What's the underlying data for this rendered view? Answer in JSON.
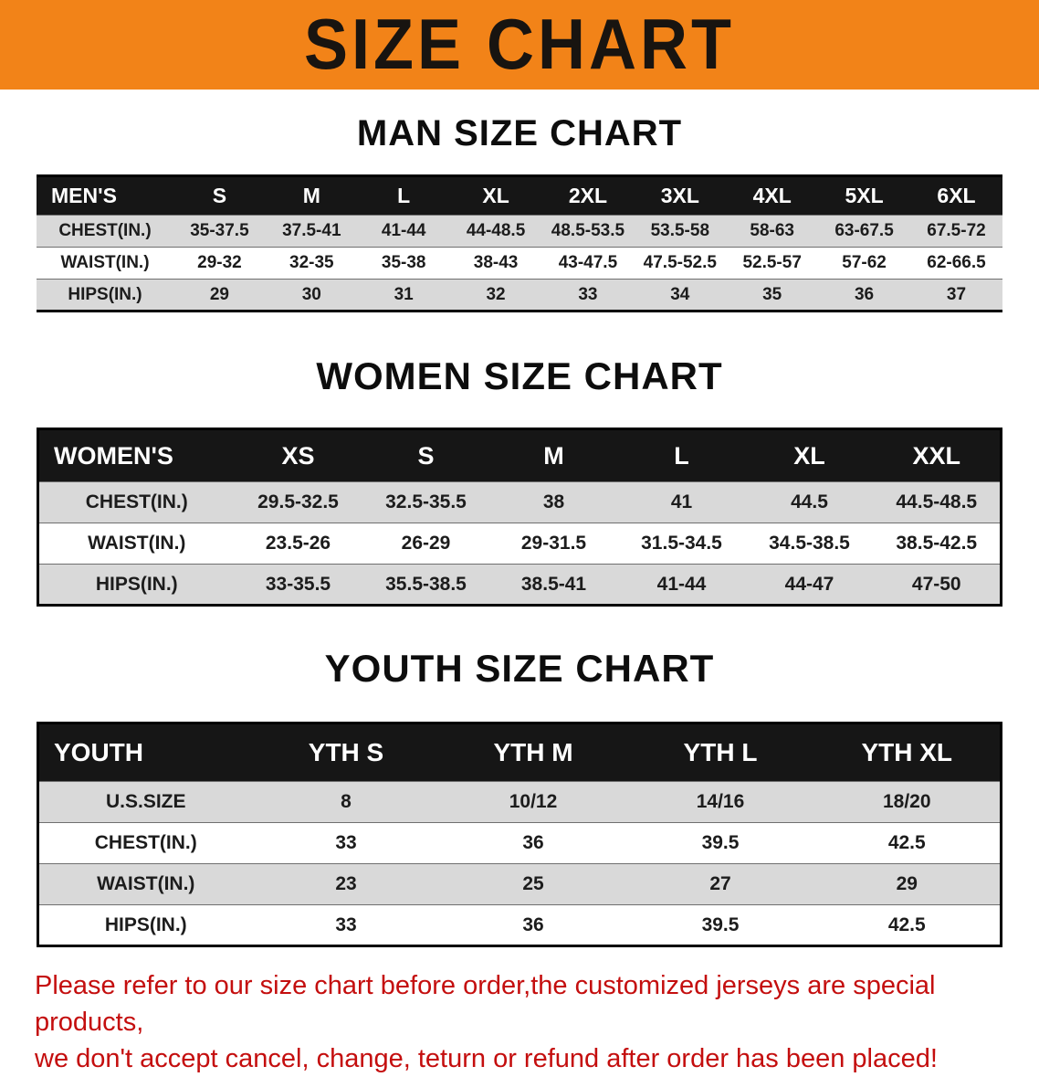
{
  "banner": {
    "title": "SIZE CHART"
  },
  "colors": {
    "banner_bg": "#f28318",
    "table_header_bg": "#161616",
    "row_alt_bg": "#d9d9d9",
    "footer_text": "#c40e0e"
  },
  "sections": [
    {
      "id": "men",
      "heading": "MAN SIZE CHART",
      "header": [
        "MEN'S",
        "S",
        "M",
        "L",
        "XL",
        "2XL",
        "3XL",
        "4XL",
        "5XL",
        "6XL"
      ],
      "rows": [
        [
          "CHEST(IN.)",
          "35-37.5",
          "37.5-41",
          "41-44",
          "44-48.5",
          "48.5-53.5",
          "53.5-58",
          "58-63",
          "63-67.5",
          "67.5-72"
        ],
        [
          "WAIST(IN.)",
          "29-32",
          "32-35",
          "35-38",
          "38-43",
          "43-47.5",
          "47.5-52.5",
          "52.5-57",
          "57-62",
          "62-66.5"
        ],
        [
          "HIPS(IN.)",
          "29",
          "30",
          "31",
          "32",
          "33",
          "34",
          "35",
          "36",
          "37"
        ]
      ]
    },
    {
      "id": "women",
      "heading": "WOMEN SIZE CHART",
      "header": [
        "WOMEN'S",
        "XS",
        "S",
        "M",
        "L",
        "XL",
        "XXL"
      ],
      "rows": [
        [
          "CHEST(IN.)",
          "29.5-32.5",
          "32.5-35.5",
          "38",
          "41",
          "44.5",
          "44.5-48.5"
        ],
        [
          "WAIST(IN.)",
          "23.5-26",
          "26-29",
          "29-31.5",
          "31.5-34.5",
          "34.5-38.5",
          "38.5-42.5"
        ],
        [
          "HIPS(IN.)",
          "33-35.5",
          "35.5-38.5",
          "38.5-41",
          "41-44",
          "44-47",
          "47-50"
        ]
      ]
    },
    {
      "id": "youth",
      "heading": "YOUTH SIZE CHART",
      "header": [
        "YOUTH",
        "YTH S",
        "YTH M",
        "YTH L",
        "YTH XL"
      ],
      "rows": [
        [
          "U.S.SIZE",
          "8",
          "10/12",
          "14/16",
          "18/20"
        ],
        [
          "CHEST(IN.)",
          "33",
          "36",
          "39.5",
          "42.5"
        ],
        [
          "WAIST(IN.)",
          "23",
          "25",
          "27",
          "29"
        ],
        [
          "HIPS(IN.)",
          "33",
          "36",
          "39.5",
          "42.5"
        ]
      ]
    }
  ],
  "footer": {
    "line1": "Please refer to our size chart before order,the customized jerseys are special products,",
    "line2": "we don't accept cancel, change, teturn or refund after order has been placed!"
  }
}
